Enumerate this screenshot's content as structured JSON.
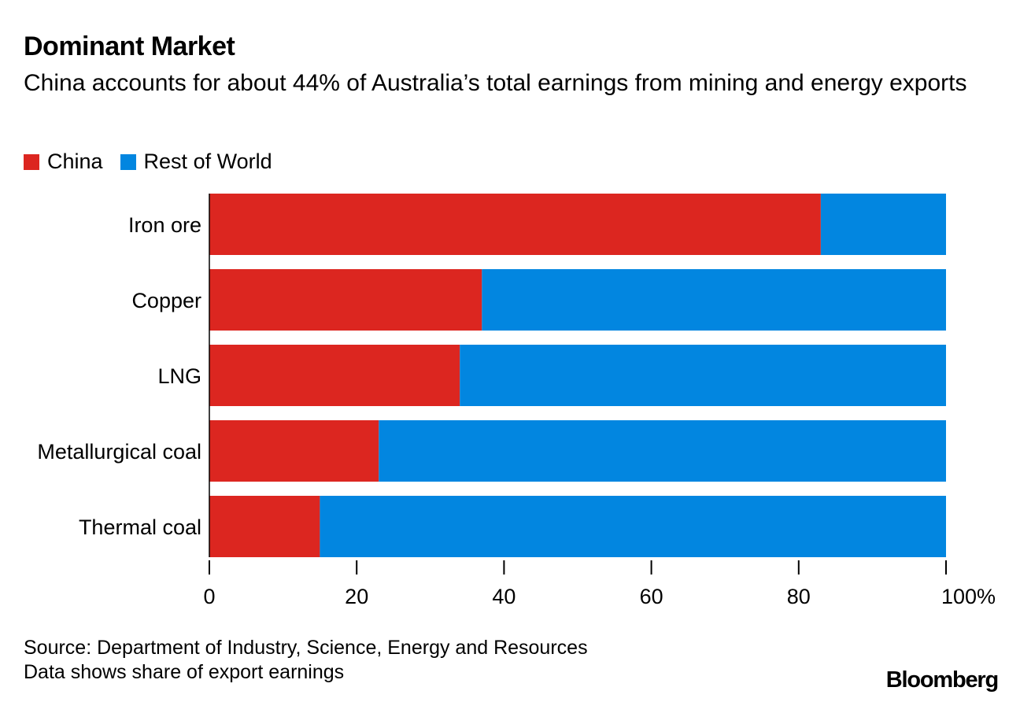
{
  "colors": {
    "china": "#dc2620",
    "rest": "#0286e0",
    "axis": "#000000"
  },
  "chart_data": {
    "type": "bar",
    "orientation": "horizontal",
    "stacked": true,
    "title": "Dominant Market",
    "subtitle": "China accounts for about 44% of Australia’s total earnings from mining and energy exports",
    "categories": [
      "Iron ore",
      "Copper",
      "LNG",
      "Metallurgical coal",
      "Thermal coal"
    ],
    "series": [
      {
        "name": "China",
        "values": [
          83,
          37,
          34,
          23,
          15
        ]
      },
      {
        "name": "Rest of World",
        "values": [
          17,
          63,
          66,
          77,
          85
        ]
      }
    ],
    "xlim": [
      0,
      100
    ],
    "xticks": [
      "0",
      "20",
      "40",
      "60",
      "80",
      "100%"
    ],
    "xlabel": "",
    "ylabel": "",
    "legend_position": "top-left",
    "grid": false
  },
  "footer": {
    "source": "Source: Department of Industry, Science, Energy and Resources",
    "note": "Data shows share of export earnings"
  },
  "brand": "Bloomberg"
}
